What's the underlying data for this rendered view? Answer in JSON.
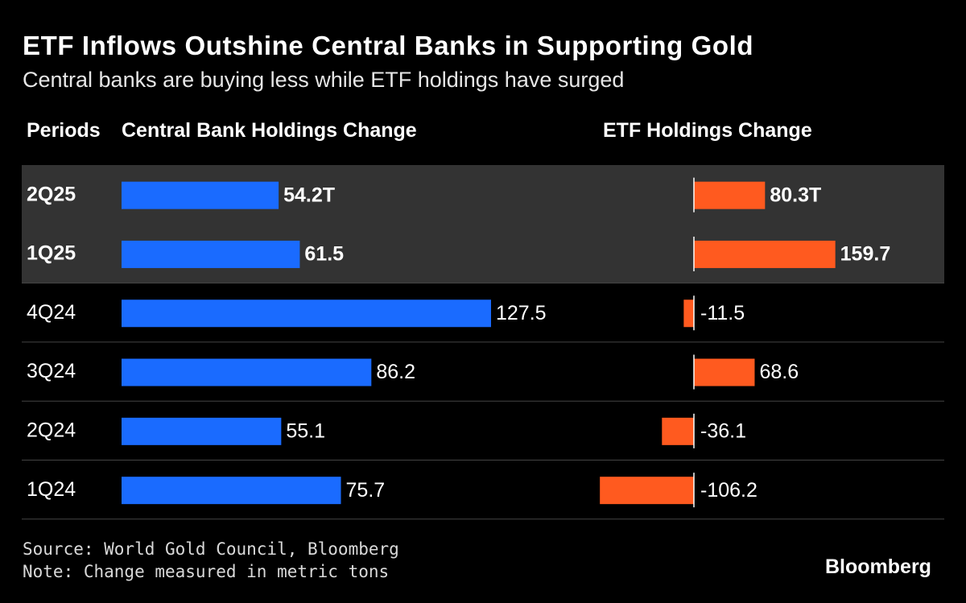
{
  "title": "ETF Inflows Outshine Central Banks in Supporting Gold",
  "subtitle": "Central banks are buying less while ETF holdings have surged",
  "columns": {
    "periods": "Periods",
    "central_bank": "Central Bank Holdings Change",
    "etf": "ETF Holdings Change"
  },
  "colors": {
    "background": "#000000",
    "highlight_band": "#333333",
    "central_bank_bar": "#1a6bff",
    "etf_bar": "#ff5a1f",
    "divider": "#444444",
    "text": "#ffffff"
  },
  "chart_data": {
    "type": "bar",
    "categories": [
      "2Q25",
      "1Q25",
      "4Q24",
      "3Q24",
      "2Q24",
      "1Q24"
    ],
    "highlighted": [
      "2Q25",
      "1Q25"
    ],
    "series": [
      {
        "name": "Central Bank Holdings Change",
        "values": [
          54.2,
          61.5,
          127.5,
          86.2,
          55.1,
          75.7
        ],
        "labels": [
          "54.2T",
          "61.5",
          "127.5",
          "86.2",
          "55.1",
          "75.7"
        ]
      },
      {
        "name": "ETF Holdings Change",
        "values": [
          80.3,
          159.7,
          -11.5,
          68.6,
          -36.1,
          -106.2
        ],
        "labels": [
          "80.3T",
          "159.7",
          "-11.5",
          "68.6",
          "-36.1",
          "-106.2"
        ]
      }
    ]
  },
  "footer": {
    "source": "Source: World Gold Council, Bloomberg",
    "note": "Note: Change measured in metric tons",
    "brand": "Bloomberg"
  }
}
